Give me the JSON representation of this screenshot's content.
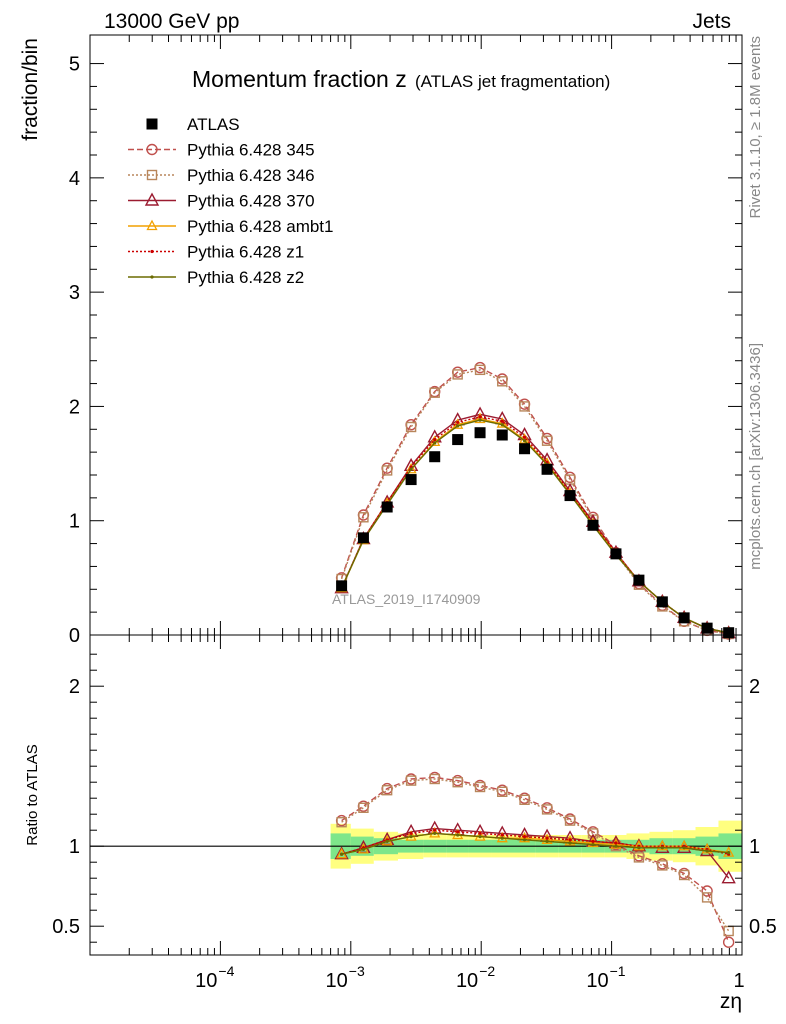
{
  "header": {
    "left": "13000 GeV pp",
    "right": "Jets"
  },
  "side_text": {
    "rivet": "Rivet 3.1.10, ≥ 1.8M events",
    "mcplots": "mcplots.cern.ch [arXiv:1306.3436]"
  },
  "colors": {
    "data": "#000000",
    "p345": "#c0504d",
    "p346": "#b8865b",
    "p370": "#9b1b30",
    "ambt1": "#f2a100",
    "z1": "#cc0000",
    "z2": "#6b6b00",
    "band_inner": "#7ee68a",
    "band_outer": "#ffff80"
  },
  "chart_data": [
    {
      "type": "line",
      "title": "Momentum fraction z",
      "title_sub": "(ATLAS jet fragmentation)",
      "ylabel": "fraction/bin",
      "xlabel": "zη",
      "analysis_label": "ATLAS_2019_I1740909",
      "x_scale": "log",
      "xlim": [
        1e-05,
        1
      ],
      "ylim": [
        0,
        5.25
      ],
      "yticks": [
        "0",
        "1",
        "2",
        "3",
        "4",
        "5"
      ],
      "xtick_labels": [
        "10",
        "−4",
        "10",
        "−3",
        "10",
        "−2",
        "10",
        "−1",
        "1"
      ],
      "legend_position": "top-left",
      "x": [
        0.00085,
        0.00125,
        0.0019,
        0.0029,
        0.0044,
        0.0066,
        0.0098,
        0.0145,
        0.0215,
        0.032,
        0.048,
        0.072,
        0.108,
        0.162,
        0.245,
        0.36,
        0.54,
        0.79
      ],
      "series": [
        {
          "name": "ATLAS",
          "key": "data",
          "marker": "square",
          "line": "none",
          "values": [
            0.43,
            0.85,
            1.12,
            1.36,
            1.56,
            1.71,
            1.77,
            1.75,
            1.63,
            1.45,
            1.22,
            0.96,
            0.71,
            0.48,
            0.29,
            0.15,
            0.06,
            0.02
          ]
        },
        {
          "name": "Pythia 6.428 345",
          "key": "p345",
          "marker": "circle",
          "line": "dashed",
          "values": [
            0.5,
            1.05,
            1.46,
            1.84,
            2.13,
            2.3,
            2.34,
            2.24,
            2.02,
            1.72,
            1.38,
            1.03,
            0.72,
            0.45,
            0.26,
            0.12,
            0.04,
            0.008
          ]
        },
        {
          "name": "Pythia 6.428 346",
          "key": "p346",
          "marker": "square-open",
          "line": "dotted",
          "values": [
            0.49,
            1.03,
            1.44,
            1.82,
            2.12,
            2.28,
            2.32,
            2.22,
            2.0,
            1.7,
            1.36,
            1.01,
            0.71,
            0.44,
            0.25,
            0.12,
            0.04,
            0.009
          ]
        },
        {
          "name": "Pythia 6.428 370",
          "key": "p370",
          "marker": "triangle",
          "line": "solid",
          "values": [
            0.41,
            0.84,
            1.16,
            1.48,
            1.73,
            1.88,
            1.93,
            1.89,
            1.75,
            1.53,
            1.26,
            0.99,
            0.72,
            0.47,
            0.29,
            0.15,
            0.058,
            0.016
          ]
        },
        {
          "name": "Pythia 6.428 ambt1",
          "key": "ambt1",
          "marker": "triangle-small",
          "line": "solid",
          "values": [
            0.41,
            0.83,
            1.15,
            1.45,
            1.69,
            1.84,
            1.89,
            1.85,
            1.71,
            1.5,
            1.24,
            0.97,
            0.71,
            0.47,
            0.29,
            0.15,
            0.058,
            0.019
          ]
        },
        {
          "name": "Pythia 6.428 z1",
          "key": "z1",
          "marker": "dot",
          "line": "dotted",
          "values": [
            0.41,
            0.84,
            1.16,
            1.47,
            1.71,
            1.86,
            1.91,
            1.87,
            1.73,
            1.51,
            1.25,
            0.98,
            0.72,
            0.47,
            0.29,
            0.15,
            0.058,
            0.019
          ]
        },
        {
          "name": "Pythia 6.428 z2",
          "key": "z2",
          "marker": "dot",
          "line": "solid",
          "values": [
            0.41,
            0.83,
            1.14,
            1.45,
            1.68,
            1.83,
            1.88,
            1.84,
            1.7,
            1.49,
            1.23,
            0.96,
            0.7,
            0.47,
            0.29,
            0.15,
            0.058,
            0.019
          ]
        }
      ]
    },
    {
      "type": "line",
      "ylabel": "Ratio to ATLAS",
      "x_scale": "log",
      "xlim": [
        1e-05,
        1
      ],
      "ylim": [
        0.32,
        2.32
      ],
      "yticks": [
        "0.5",
        "1",
        "2"
      ],
      "reference": 1,
      "x": [
        0.00085,
        0.00125,
        0.0019,
        0.0029,
        0.0044,
        0.0066,
        0.0098,
        0.0145,
        0.0215,
        0.032,
        0.048,
        0.072,
        0.108,
        0.162,
        0.245,
        0.36,
        0.54,
        0.79
      ],
      "band_edges": [
        0.0007,
        0.001,
        0.0015,
        0.0023,
        0.0036,
        0.0054,
        0.008,
        0.012,
        0.018,
        0.026,
        0.039,
        0.059,
        0.088,
        0.13,
        0.195,
        0.295,
        0.44,
        0.66,
        1.0
      ],
      "band_inner": [
        0.08,
        0.06,
        0.05,
        0.04,
        0.04,
        0.04,
        0.04,
        0.04,
        0.04,
        0.04,
        0.04,
        0.04,
        0.04,
        0.04,
        0.05,
        0.05,
        0.06,
        0.08
      ],
      "band_outer": [
        0.14,
        0.11,
        0.09,
        0.08,
        0.07,
        0.07,
        0.07,
        0.07,
        0.07,
        0.07,
        0.07,
        0.07,
        0.07,
        0.08,
        0.09,
        0.1,
        0.12,
        0.16
      ],
      "series": [
        {
          "name": "Pythia 6.428 345",
          "key": "p345",
          "marker": "circle",
          "line": "dashed",
          "values": [
            1.16,
            1.25,
            1.36,
            1.42,
            1.43,
            1.41,
            1.38,
            1.35,
            1.3,
            1.24,
            1.17,
            1.09,
            1.01,
            0.94,
            0.89,
            0.83,
            0.72,
            0.4
          ]
        },
        {
          "name": "Pythia 6.428 346",
          "key": "p346",
          "marker": "square-open",
          "line": "dotted",
          "values": [
            1.15,
            1.24,
            1.35,
            1.41,
            1.42,
            1.4,
            1.37,
            1.34,
            1.29,
            1.23,
            1.16,
            1.08,
            1.0,
            0.93,
            0.88,
            0.82,
            0.68,
            0.47
          ]
        },
        {
          "name": "Pythia 6.428 370",
          "key": "p370",
          "marker": "triangle",
          "line": "solid",
          "values": [
            0.95,
            0.99,
            1.04,
            1.09,
            1.11,
            1.1,
            1.09,
            1.08,
            1.07,
            1.06,
            1.05,
            1.03,
            1.02,
            1.0,
            0.99,
            0.99,
            0.97,
            0.8
          ]
        },
        {
          "name": "Pythia 6.428 ambt1",
          "key": "ambt1",
          "marker": "triangle-small",
          "line": "solid",
          "values": [
            0.95,
            0.98,
            1.03,
            1.06,
            1.08,
            1.07,
            1.06,
            1.05,
            1.05,
            1.04,
            1.03,
            1.02,
            1.01,
            1.0,
            1.0,
            1.0,
            0.98,
            0.96
          ]
        },
        {
          "name": "Pythia 6.428 z1",
          "key": "z1",
          "marker": "dot",
          "line": "dotted",
          "values": [
            0.95,
            0.99,
            1.04,
            1.08,
            1.1,
            1.09,
            1.08,
            1.07,
            1.06,
            1.05,
            1.04,
            1.03,
            1.02,
            1.0,
            1.0,
            1.0,
            0.98,
            0.95
          ]
        },
        {
          "name": "Pythia 6.428 z2",
          "key": "z2",
          "marker": "dot",
          "line": "solid",
          "values": [
            0.95,
            0.98,
            1.03,
            1.06,
            1.08,
            1.07,
            1.06,
            1.05,
            1.04,
            1.03,
            1.02,
            1.01,
            1.0,
            0.99,
            0.99,
            0.99,
            0.97,
            0.96
          ]
        }
      ]
    }
  ]
}
